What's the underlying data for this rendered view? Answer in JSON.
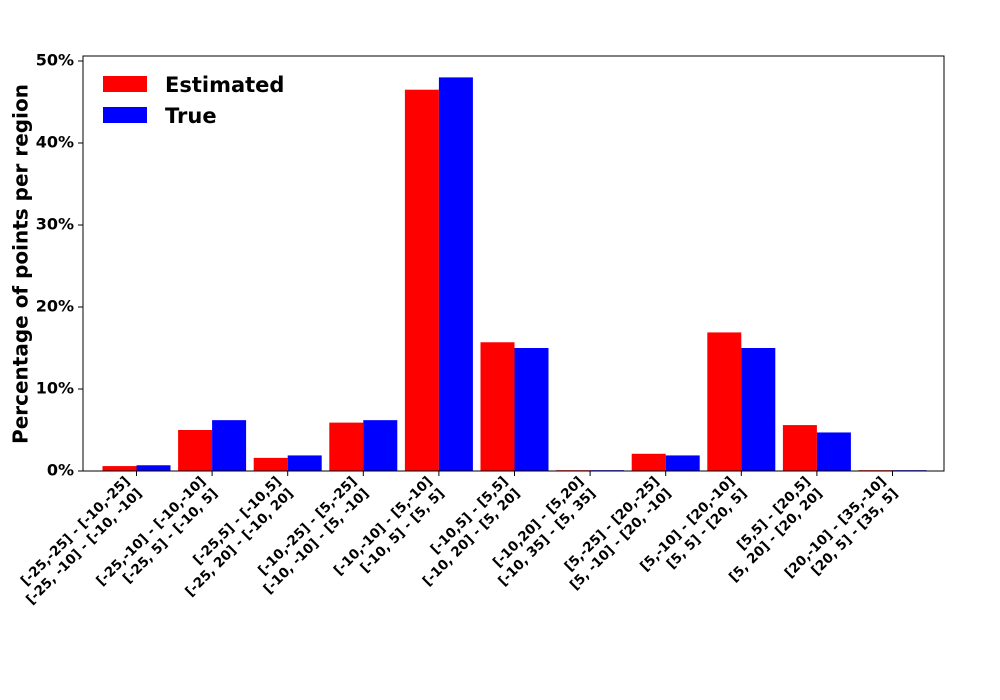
{
  "chart_data": {
    "type": "bar",
    "title": "",
    "xlabel": "",
    "ylabel": "Percentage of points per region",
    "ylim": [
      0,
      50
    ],
    "y_ticks": [
      "0%",
      "10%",
      "20%",
      "30%",
      "40%",
      "50%"
    ],
    "legend_position": "top-left",
    "grid": false,
    "categories": [
      [
        "[-25,-25] - [-10,-25]",
        "[-25, -10] - [-10, -10]"
      ],
      [
        "[-25,-10] - [-10,-10]",
        "[-25, 5] - [-10, 5]"
      ],
      [
        "[-25,5] - [-10,5]",
        "[-25, 20] - [-10, 20]"
      ],
      [
        "[-10,-25] - [5,-25]",
        "[-10, -10] - [5, -10]"
      ],
      [
        "[-10,-10] - [5,-10]",
        "[-10, 5] - [5, 5]"
      ],
      [
        "[-10,5] - [5,5]",
        "[-10, 20] - [5, 20]"
      ],
      [
        "[-10,20] - [5,20]",
        "[-10, 35] - [5, 35]"
      ],
      [
        "[5,-25] - [20,-25]",
        "[5, -10] - [20, -10]"
      ],
      [
        "[5,-10] - [20,-10]",
        "[5, 5] - [20, 5]"
      ],
      [
        "[5,5] - [20,5]",
        "[5, 20] - [20, 20]"
      ],
      [
        "[20,-10] - [35,-10]",
        "[20, 5] - [35, 5]"
      ]
    ],
    "series": [
      {
        "name": "Estimated",
        "color": "#ff0000",
        "values": [
          0.6,
          5.0,
          1.6,
          5.9,
          46.5,
          15.7,
          0.1,
          2.1,
          16.9,
          5.6,
          0.1
        ]
      },
      {
        "name": "True",
        "color": "#0000ff",
        "values": [
          0.7,
          6.2,
          1.9,
          6.2,
          48.0,
          15.0,
          0.1,
          1.9,
          15.0,
          4.7,
          0.1
        ]
      }
    ]
  }
}
